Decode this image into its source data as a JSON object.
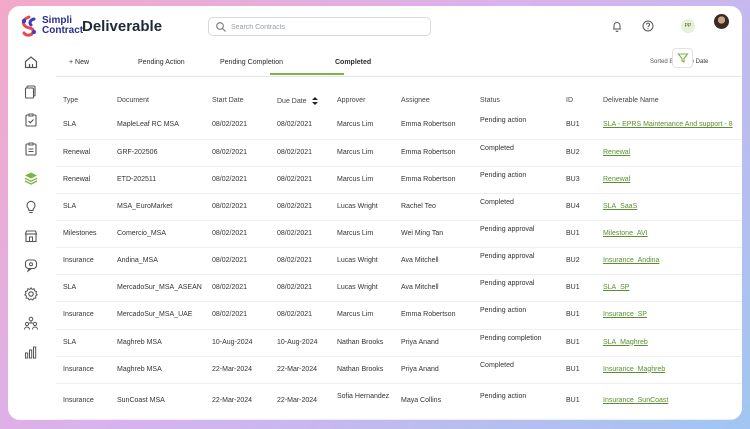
{
  "app": {
    "logo_line1": "Simpli",
    "logo_line2": "Contract",
    "page_title": "Deliverable",
    "search_placeholder": "Search Contracts",
    "user_initials": "PP"
  },
  "tabs": [
    {
      "label": "+ New"
    },
    {
      "label": "Pending Action"
    },
    {
      "label": "Pending Completion"
    },
    {
      "label": "Completed",
      "active": true
    }
  ],
  "sort": {
    "label": "Sorted By:",
    "value": "Due Date"
  },
  "sidebar": [
    "home-icon",
    "documents-icon",
    "clipboard-check-icon",
    "clipboard-list-icon",
    "layers-icon",
    "bulb-icon",
    "store-icon",
    "chat-icon",
    "gear-icon",
    "team-icon",
    "bar-chart-icon"
  ],
  "table": {
    "headers": [
      "Type",
      "Document",
      "Start Date",
      "Due Date",
      "Approver",
      "Assignee",
      "Status",
      "ID",
      "Deliverable Name"
    ],
    "rows": [
      {
        "type": "SLA",
        "document": "MapleLeaf RC MSA",
        "start": "08/02/2021",
        "due": "08/02/2021",
        "approver": "Marcus Lim",
        "assignee": "Emma Robertson",
        "status": "Pending action",
        "id": "BU1",
        "name": "SLA - EPRS Maintenance And support - 8"
      },
      {
        "type": "Renewal",
        "document": "GRF-202506",
        "start": "08/02/2021",
        "due": "08/02/2021",
        "approver": "Marcus Lim",
        "assignee": "Emma Robertson",
        "status": "Completed",
        "id": "BU2",
        "name": "Renewal"
      },
      {
        "type": "Renewal",
        "document": "ETD-202511",
        "start": "08/02/2021",
        "due": "08/02/2021",
        "approver": "Marcus Lim",
        "assignee": "Emma Robertson",
        "status": "Pending action",
        "id": "BU3",
        "name": "Renewal"
      },
      {
        "type": "SLA",
        "document": "MSA_EuroMarket",
        "start": "08/02/2021",
        "due": "08/02/2021",
        "approver": "Lucas Wright",
        "assignee": "Rachel Teo",
        "status": "Completed",
        "id": "BU4",
        "name": "SLA_SaaS"
      },
      {
        "type": "Milestones",
        "document": "Comercio_MSA",
        "start": "08/02/2021",
        "due": "08/02/2021",
        "approver": "Marcus Lim",
        "assignee": "Wei Ming Tan",
        "status": "Pending approval",
        "id": "BU1",
        "name": "Milestone_AVI"
      },
      {
        "type": "Insurance",
        "document": "Andina_MSA",
        "start": "08/02/2021",
        "due": "08/02/2021",
        "approver": "Lucas Wright",
        "assignee": "Ava Mitchell",
        "status": "Pending approval",
        "id": "BU2",
        "name": "Insurance_Andina"
      },
      {
        "type": "SLA",
        "document": "MercadoSur_MSA_ASEAN",
        "start": "08/02/2021",
        "due": "08/02/2021",
        "approver": "Lucas Wright",
        "assignee": "Ava Mitchell",
        "status": "Pending approval",
        "id": "BU1",
        "name": "SLA_SP"
      },
      {
        "type": "Insurance",
        "document": "MercadoSur_MSA_UAE",
        "start": "08/02/2021",
        "due": "08/02/2021",
        "approver": "Marcus Lim",
        "assignee": "Emma Robertson",
        "status": "Pending action",
        "id": "BU1",
        "name": "Insurance_SP"
      },
      {
        "type": "SLA",
        "document": "Maghreb MSA",
        "start": "10-Aug-2024",
        "due": "10-Aug-2024",
        "approver": "Nathan Brooks",
        "assignee": "Priya Anand",
        "status": "Pending completion",
        "id": "BU1",
        "name": "SLA_Maghreb"
      },
      {
        "type": "Insurance",
        "document": "Maghreb MSA",
        "start": "22-Mar-2024",
        "due": "22-Mar-2024",
        "approver": "Nathan Brooks",
        "assignee": "Priya Anand",
        "status": "Completed",
        "id": "BU1",
        "name": "Insurance_Maghreb"
      },
      {
        "type": "Insurance",
        "document": "SunCoast MSA",
        "start": "22-Mar-2024",
        "due": "22-Mar-2024",
        "approver": "Sofia Hernandez",
        "assignee": "Maya Collins",
        "status": "Pending action",
        "id": "BU1",
        "name": "Insurance_SunCoast"
      }
    ]
  },
  "colors": {
    "accent": "#7cb342",
    "link": "#5a8f2f",
    "brand": "#2b2f8f"
  }
}
